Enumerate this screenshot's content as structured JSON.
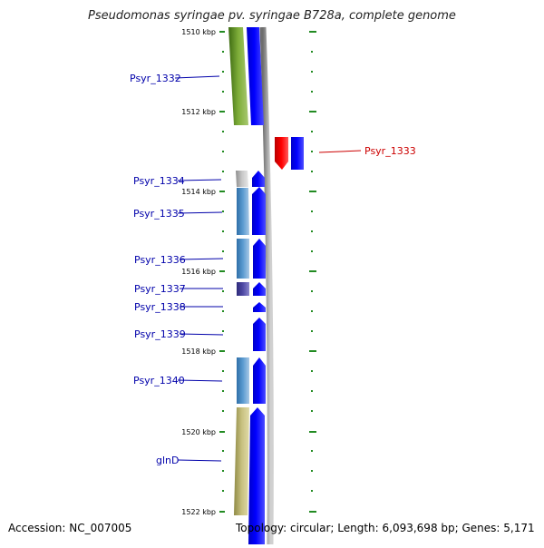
{
  "title": "Pseudomonas syringae pv. syringae B728a, complete genome",
  "accession": "Accession: NC_007005",
  "info": "Topology: circular; Length: 6,093,698 bp; Genes: 5,171",
  "colors": {
    "gene_label": "#0000aa",
    "highlight_label": "#cc0000",
    "tick": "#228b22",
    "cds_forward": "#0000ff",
    "cds_reverse": "#ff0000"
  },
  "ticks": [
    {
      "label": "1510 kbp"
    },
    {
      "label": "1512 kbp"
    },
    {
      "label": "1514 kbp"
    },
    {
      "label": "1516 kbp"
    },
    {
      "label": "1518 kbp"
    },
    {
      "label": "1520 kbp"
    },
    {
      "label": "1522 kbp"
    }
  ],
  "genes": [
    {
      "label": "Psyr_1332",
      "strand": "forward"
    },
    {
      "label": "Psyr_1333",
      "strand": "reverse"
    },
    {
      "label": "Psyr_1334",
      "strand": "forward"
    },
    {
      "label": "Psyr_1335",
      "strand": "forward"
    },
    {
      "label": "Psyr_1336",
      "strand": "forward"
    },
    {
      "label": "Psyr_1337",
      "strand": "forward"
    },
    {
      "label": "Psyr_1338",
      "strand": "forward"
    },
    {
      "label": "Psyr_1339",
      "strand": "forward"
    },
    {
      "label": "Psyr_1340",
      "strand": "forward"
    },
    {
      "label": "glnD",
      "strand": "forward"
    }
  ]
}
